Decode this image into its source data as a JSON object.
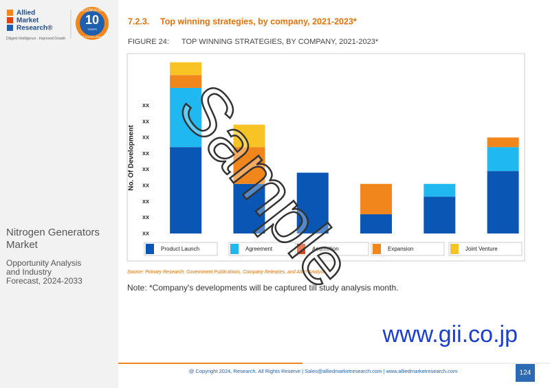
{
  "header": {
    "logo": [
      "Allied",
      "Market",
      "Research®"
    ],
    "tagline": "Diligent Intelligence - Improved Growth",
    "badge": {
      "top": "CELEBRATING",
      "number": "10",
      "years": "YEARS",
      "bottom": "OF EXCELLENCE"
    }
  },
  "sidebar": {
    "title": [
      "Nitrogen Generators",
      "Market"
    ],
    "subtitle": [
      "Opportunity Analysis",
      "and Industry",
      "Forecast, 2024-2033"
    ]
  },
  "section": {
    "number": "7.2.3.",
    "title": "Top winning strategies, by company, 2021-2023*"
  },
  "figure": {
    "label": "FIGURE 24:",
    "title": "TOP WINNING STRATEGIES, BY COMPANY, 2021-2023*"
  },
  "chart_data": {
    "type": "bar",
    "stacked": true,
    "y_label": "No. Of Development",
    "categories": [
      null,
      null,
      null,
      null,
      null,
      null
    ],
    "series": [
      {
        "name": "Product Launch",
        "color": "#0a56b4",
        "values": [
          5.4,
          3.1,
          3.8,
          1.2,
          2.3,
          3.9
        ]
      },
      {
        "name": "Agreement",
        "color": "#1fb8f0",
        "values": [
          3.7,
          0,
          0,
          0,
          0.8,
          1.5
        ]
      },
      {
        "name": "Acquisition",
        "color": "#e0420f",
        "values": [
          0,
          0,
          0,
          0,
          0,
          0
        ]
      },
      {
        "name": "Expansion",
        "color": "#f0861c",
        "values": [
          0.8,
          2.3,
          0,
          1.9,
          0,
          0.6
        ]
      },
      {
        "name": "Joint Venture",
        "color": "#f7c325",
        "values": [
          0.8,
          1.4,
          0,
          0,
          0,
          0
        ]
      }
    ],
    "ylim": [
      0,
      11
    ],
    "yticks": [
      {
        "value": 0,
        "label": "xx"
      },
      {
        "value": 1,
        "label": "xx"
      },
      {
        "value": 2,
        "label": "xx"
      },
      {
        "value": 3,
        "label": "xx"
      },
      {
        "value": 4,
        "label": "xx"
      },
      {
        "value": 5,
        "label": "xx"
      },
      {
        "value": 6,
        "label": "xx"
      },
      {
        "value": 7,
        "label": "xx"
      },
      {
        "value": 8,
        "label": "xx"
      }
    ]
  },
  "source": "Source: Primary Research, Government Publications, Company Releases, and AMR Analysis",
  "note": "Note: *Company's developments will be captured till study analysis month.",
  "watermark": "Sample",
  "site": "www.gii.co.jp",
  "footer": {
    "copyright": "@ Copyright 2024, Research. All Rights Reserve | Sales@alliedmarketresearch.com | www.alliedmarketresearch.com",
    "page": "124"
  }
}
